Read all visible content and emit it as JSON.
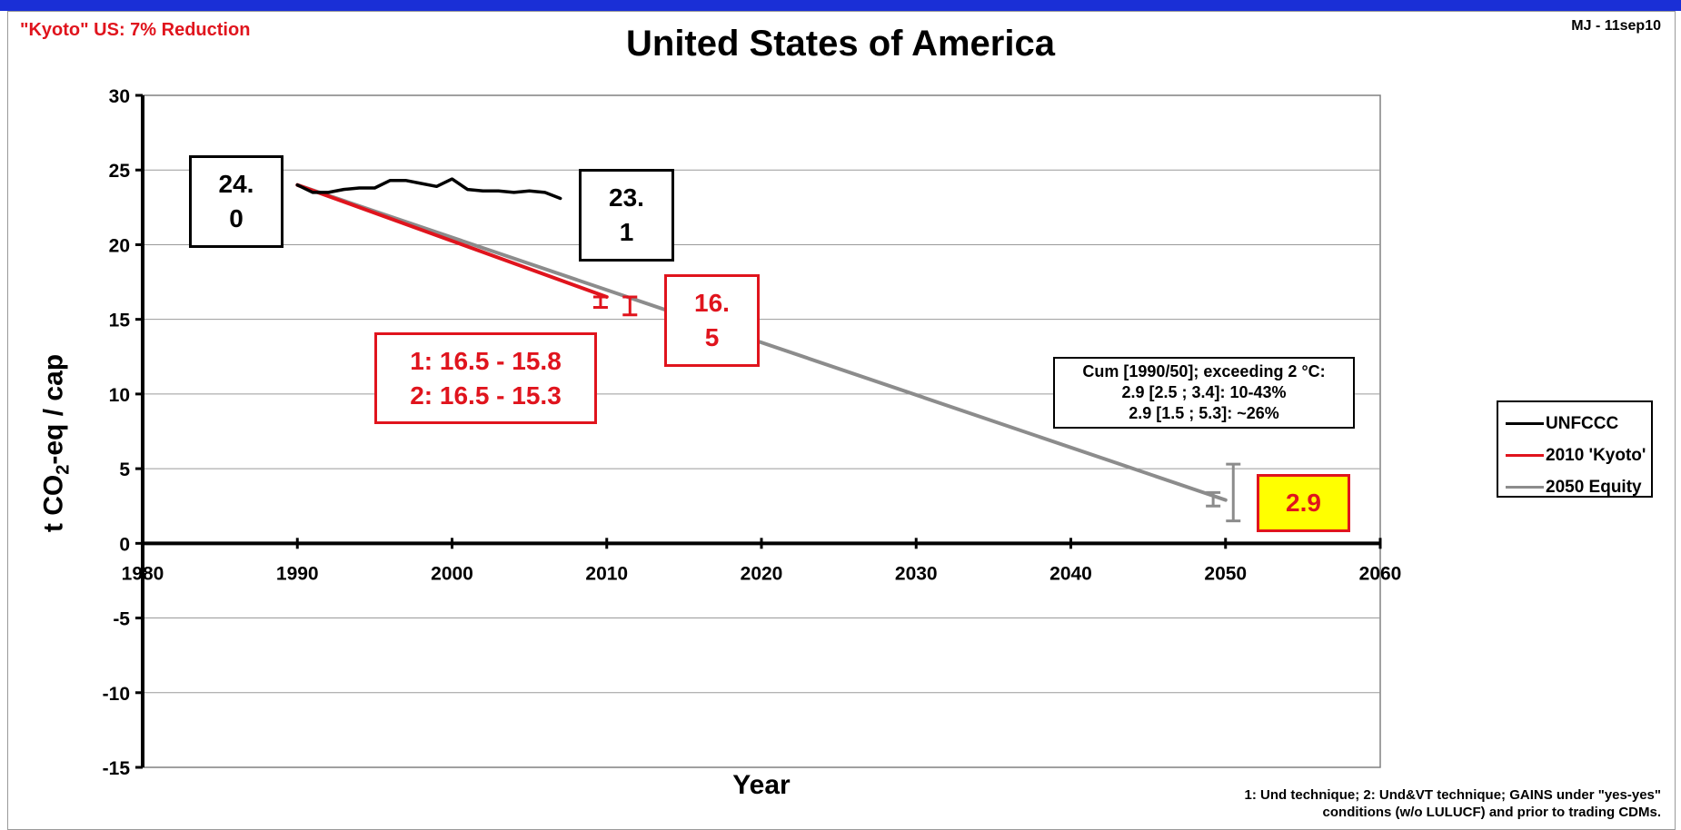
{
  "header": {
    "left_note": "\"Kyoto\" US: 7% Reduction",
    "right_note": "MJ - 11sep10"
  },
  "colors": {
    "unfccc": "#000000",
    "kyoto": "#e0141d",
    "equity": "#8c8c8c",
    "highlight_fill": "#ffff00"
  },
  "chart_data": {
    "type": "line",
    "title": "United States of America",
    "xlabel": "Year",
    "ylabel": "t CO2-eq / cap",
    "xlim": [
      1980,
      2060
    ],
    "ylim": [
      -15,
      30
    ],
    "xticks": [
      1980,
      1990,
      2000,
      2010,
      2020,
      2030,
      2040,
      2050,
      2060
    ],
    "yticks": [
      30,
      25,
      20,
      15,
      10,
      5,
      0,
      -5,
      -10,
      -15
    ],
    "grid": "horizontal",
    "legend_position": "right",
    "series": [
      {
        "name": "UNFCCC",
        "color": "#000000",
        "x": [
          1990,
          1991,
          1992,
          1993,
          1994,
          1995,
          1996,
          1997,
          1998,
          1999,
          2000,
          2001,
          2002,
          2003,
          2004,
          2005,
          2006,
          2007
        ],
        "y": [
          24.0,
          23.5,
          23.5,
          23.7,
          23.8,
          23.8,
          24.3,
          24.3,
          24.1,
          23.9,
          24.4,
          23.7,
          23.6,
          23.6,
          23.5,
          23.6,
          23.5,
          23.1
        ]
      },
      {
        "name": "2010 'Kyoto'",
        "color": "#e0141d",
        "x": [
          1990,
          2010
        ],
        "y": [
          24.0,
          16.5
        ]
      },
      {
        "name": "2050 Equity",
        "color": "#8c8c8c",
        "x": [
          1990,
          2050
        ],
        "y": [
          24.0,
          2.9
        ]
      }
    ],
    "error_bars": [
      {
        "x": 2009.6,
        "low": 15.8,
        "high": 16.5,
        "color": "#e0141d"
      },
      {
        "x": 2011.5,
        "low": 15.3,
        "high": 16.5,
        "color": "#e0141d"
      },
      {
        "x": 2049.2,
        "low": 2.5,
        "high": 3.4,
        "color": "#8c8c8c"
      },
      {
        "x": 2050.5,
        "low": 1.5,
        "high": 5.3,
        "color": "#8c8c8c"
      }
    ],
    "annotations": {
      "start_value": [
        "24.",
        "0"
      ],
      "last_value": [
        "23.",
        "1"
      ],
      "kyoto_value": [
        "16.",
        "5"
      ],
      "ranges": [
        "1: 16.5 - 15.8",
        "2: 16.5 - 15.3"
      ],
      "equity_value": "2.9",
      "cum_lines": [
        "Cum [1990/50];  exceeding 2 °C:",
        "2.9 [2.5 ; 3.4]: 10-43%",
        "2.9 [1.5 ; 5.3]:   ~26%"
      ]
    }
  },
  "footnote": {
    "line1": "1: Und technique; 2: Und&VT technique; GAINS under \"yes-yes\"",
    "line2": "conditions (w/o LULUCF) and prior to trading CDMs."
  }
}
